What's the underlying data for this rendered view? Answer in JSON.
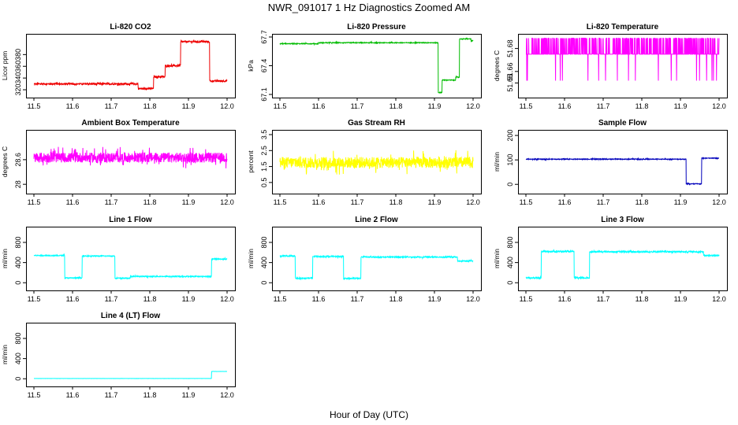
{
  "figure_title": "NWR_091017  1 Hz Diagnostics Zoomed AM",
  "x_axis_label": "Hour of Day (UTC)",
  "chart_data": [
    {
      "type": "line",
      "title": "Li-820 CO2",
      "ylabel": "Licor ppm",
      "color": "#ee0000",
      "xlim": [
        11.5,
        12.0
      ],
      "ylim": [
        312,
        410
      ],
      "yticks": [
        320,
        340,
        360,
        380
      ],
      "xticks": [
        11.5,
        11.6,
        11.7,
        11.8,
        11.9,
        12.0
      ],
      "noise": 1.5,
      "segments": [
        [
          11.5,
          11.77,
          330
        ],
        [
          11.77,
          11.81,
          322
        ],
        [
          11.81,
          11.84,
          342
        ],
        [
          11.84,
          11.88,
          361
        ],
        [
          11.88,
          11.955,
          402
        ],
        [
          11.955,
          12.0,
          335
        ]
      ]
    },
    {
      "type": "line",
      "title": "Li-820 Pressure",
      "ylabel": "kPa",
      "color": "#00bb00",
      "xlim": [
        11.5,
        12.0
      ],
      "ylim": [
        67.1,
        67.7
      ],
      "yticks": [
        67.1,
        67.4,
        67.7
      ],
      "xticks": [
        11.5,
        11.6,
        11.7,
        11.8,
        11.9,
        12.0
      ],
      "noise": 0.004,
      "segments": [
        [
          11.5,
          11.6,
          67.63
        ],
        [
          11.6,
          11.91,
          67.64
        ],
        [
          11.91,
          11.92,
          67.12
        ],
        [
          11.92,
          11.955,
          67.25
        ],
        [
          11.955,
          11.965,
          67.28
        ],
        [
          11.965,
          11.995,
          67.68
        ],
        [
          11.995,
          12.0,
          67.66
        ]
      ]
    },
    {
      "type": "line",
      "title": "Li-820 Temperature",
      "ylabel": "degrees C",
      "color": "#ff00ff",
      "xlim": [
        11.5,
        12.0
      ],
      "ylim": [
        51.64,
        51.69
      ],
      "yticks": [
        51.65,
        51.66,
        51.68
      ],
      "xticks": [
        11.5,
        11.6,
        11.7,
        11.8,
        11.9,
        12.0
      ],
      "noise": 0,
      "segments": [
        [
          11.5,
          12.0,
          51.675
        ]
      ],
      "spikes_up": 51.689,
      "spikes_down": 51.652
    },
    {
      "type": "line",
      "title": "Ambient Box Temperature",
      "ylabel": "degrees C",
      "color": "#ff00ff",
      "xlim": [
        11.5,
        12.0
      ],
      "ylim": [
        27.85,
        29.25
      ],
      "yticks": [
        28.0,
        28.6
      ],
      "xticks": [
        11.5,
        11.6,
        11.7,
        11.8,
        11.9,
        12.0
      ],
      "noise": 0.12,
      "segments": [
        [
          11.5,
          12.0,
          28.65
        ]
      ]
    },
    {
      "type": "line",
      "title": "Gas Stream RH",
      "ylabel": "percent",
      "color": "#ffff00",
      "xlim": [
        11.5,
        12.0
      ],
      "ylim": [
        0.0,
        3.6
      ],
      "yticks": [
        0.5,
        1.5,
        2.5,
        3.5
      ],
      "xticks": [
        11.5,
        11.6,
        11.7,
        11.8,
        11.9,
        12.0
      ],
      "noise": 0.35,
      "segments": [
        [
          11.5,
          12.0,
          1.75
        ]
      ]
    },
    {
      "type": "line",
      "title": "Sample Flow",
      "ylabel": "ml/min",
      "color": "#0000bb",
      "xlim": [
        11.5,
        12.0
      ],
      "ylim": [
        -25,
        210
      ],
      "yticks": [
        0,
        100,
        200
      ],
      "xticks": [
        11.5,
        11.6,
        11.7,
        11.8,
        11.9,
        12.0
      ],
      "noise": 1.5,
      "segments": [
        [
          11.5,
          11.915,
          103
        ],
        [
          11.915,
          11.955,
          2
        ],
        [
          11.955,
          12.0,
          107
        ]
      ]
    },
    {
      "type": "line",
      "title": "Line 1 Flow",
      "ylabel": "ml/min",
      "color": "#00ffff",
      "xlim": [
        11.5,
        12.0
      ],
      "ylim": [
        -90,
        1050
      ],
      "yticks": [
        0,
        400,
        800
      ],
      "xticks": [
        11.5,
        11.6,
        11.7,
        11.8,
        11.9,
        12.0
      ],
      "noise": 10,
      "segments": [
        [
          11.5,
          11.58,
          540
        ],
        [
          11.58,
          11.625,
          95
        ],
        [
          11.625,
          11.71,
          530
        ],
        [
          11.71,
          11.75,
          90
        ],
        [
          11.75,
          11.96,
          125
        ],
        [
          11.96,
          12.0,
          470
        ]
      ]
    },
    {
      "type": "line",
      "title": "Line 2 Flow",
      "ylabel": "ml/min",
      "color": "#00ffff",
      "xlim": [
        11.5,
        12.0
      ],
      "ylim": [
        -90,
        1050
      ],
      "yticks": [
        0,
        400,
        800
      ],
      "xticks": [
        11.5,
        11.6,
        11.7,
        11.8,
        11.9,
        12.0
      ],
      "noise": 12,
      "segments": [
        [
          11.5,
          11.54,
          530
        ],
        [
          11.54,
          11.585,
          90
        ],
        [
          11.585,
          11.665,
          520
        ],
        [
          11.665,
          11.71,
          85
        ],
        [
          11.71,
          11.96,
          510
        ],
        [
          11.96,
          12.0,
          430
        ]
      ]
    },
    {
      "type": "line",
      "title": "Line 3 Flow",
      "ylabel": "ml/min",
      "color": "#00ffff",
      "xlim": [
        11.5,
        12.0
      ],
      "ylim": [
        -90,
        1050
      ],
      "yticks": [
        0,
        400,
        800
      ],
      "xticks": [
        11.5,
        11.6,
        11.7,
        11.8,
        11.9,
        12.0
      ],
      "noise": 15,
      "segments": [
        [
          11.5,
          11.54,
          95
        ],
        [
          11.54,
          11.625,
          620
        ],
        [
          11.625,
          11.665,
          95
        ],
        [
          11.665,
          11.96,
          615
        ],
        [
          11.96,
          12.0,
          540
        ]
      ]
    },
    {
      "type": "line",
      "title": "Line 4 (LT) Flow",
      "ylabel": "ml/min",
      "color": "#00ffff",
      "xlim": [
        11.5,
        12.0
      ],
      "ylim": [
        -90,
        1050
      ],
      "yticks": [
        0,
        400,
        800
      ],
      "xticks": [
        11.5,
        11.6,
        11.7,
        11.8,
        11.9,
        12.0
      ],
      "noise": 1,
      "segments": [
        [
          11.5,
          11.96,
          5
        ],
        [
          11.96,
          12.0,
          145
        ]
      ]
    }
  ]
}
